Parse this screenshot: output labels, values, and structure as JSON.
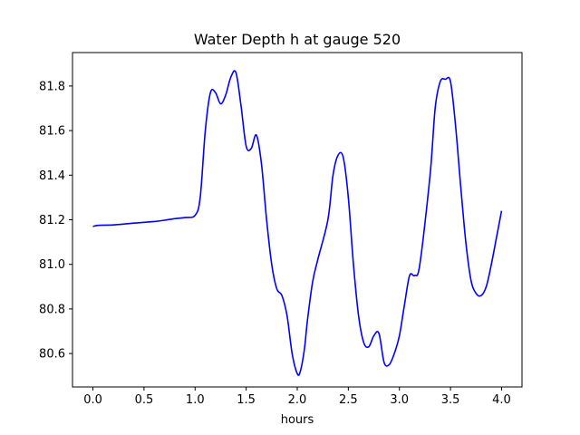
{
  "chart_data": {
    "type": "line",
    "title": "Water Depth h at gauge 520",
    "xlabel": "hours",
    "ylabel": "",
    "xlim": [
      -0.2,
      4.2
    ],
    "ylim": [
      80.45,
      81.95
    ],
    "grid": false,
    "xticks": [
      "0.0",
      "0.5",
      "1.0",
      "1.5",
      "2.0",
      "2.5",
      "3.0",
      "3.5",
      "4.0"
    ],
    "yticks": [
      "80.6",
      "80.8",
      "81.0",
      "81.2",
      "81.4",
      "81.6",
      "81.8"
    ],
    "series": [
      {
        "name": "",
        "color": "#0000ff",
        "x": [
          0.0,
          0.05,
          0.2,
          0.4,
          0.6,
          0.7,
          0.8,
          0.9,
          1.0,
          1.05,
          1.1,
          1.15,
          1.2,
          1.25,
          1.3,
          1.35,
          1.4,
          1.45,
          1.5,
          1.55,
          1.6,
          1.65,
          1.7,
          1.75,
          1.8,
          1.85,
          1.9,
          1.95,
          2.0,
          2.03,
          2.07,
          2.1,
          2.15,
          2.2,
          2.3,
          2.35,
          2.4,
          2.45,
          2.5,
          2.55,
          2.6,
          2.65,
          2.7,
          2.75,
          2.8,
          2.85,
          2.9,
          2.95,
          3.0,
          3.05,
          3.1,
          3.15,
          3.2,
          3.3,
          3.35,
          3.4,
          3.45,
          3.5,
          3.55,
          3.6,
          3.65,
          3.7,
          3.75,
          3.8,
          3.85,
          3.9,
          3.95,
          4.0
        ],
        "y": [
          81.17,
          81.175,
          81.177,
          81.185,
          81.192,
          81.198,
          81.205,
          81.21,
          81.22,
          81.3,
          81.6,
          81.77,
          81.77,
          81.72,
          81.76,
          81.84,
          81.86,
          81.71,
          81.53,
          81.52,
          81.58,
          81.45,
          81.2,
          81.0,
          80.89,
          80.86,
          80.77,
          80.6,
          80.51,
          80.52,
          80.62,
          80.75,
          80.92,
          81.02,
          81.2,
          81.4,
          81.49,
          81.48,
          81.3,
          81.0,
          80.77,
          80.65,
          80.63,
          80.68,
          80.69,
          80.56,
          80.55,
          80.6,
          80.68,
          80.82,
          80.95,
          80.95,
          81.0,
          81.4,
          81.7,
          81.82,
          81.83,
          81.82,
          81.62,
          81.35,
          81.1,
          80.93,
          80.87,
          80.86,
          80.9,
          81.0,
          81.12,
          81.24
        ]
      }
    ]
  }
}
